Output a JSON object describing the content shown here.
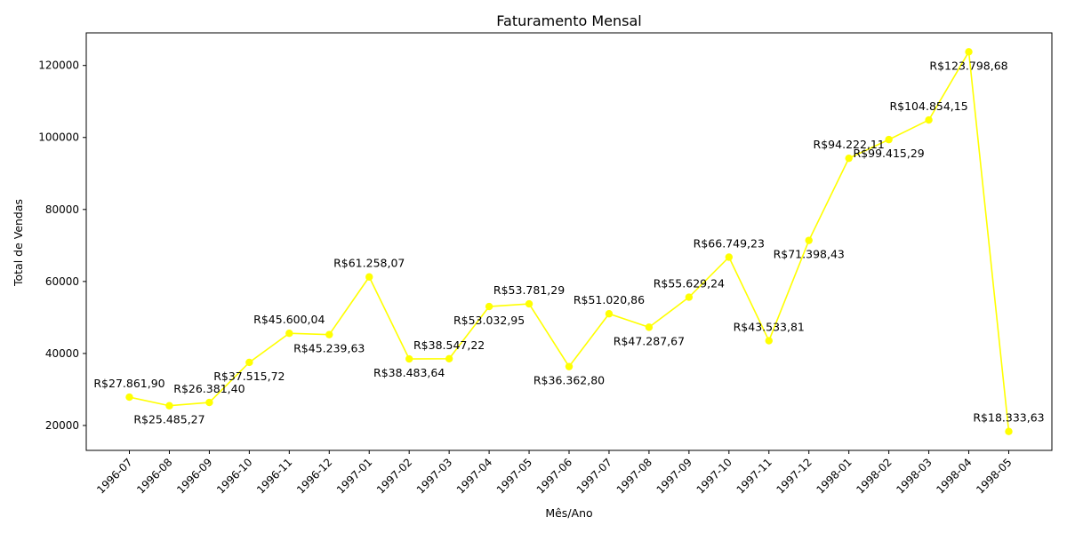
{
  "chart_data": {
    "type": "line",
    "title": "Faturamento Mensal",
    "xlabel": "Mês/Ano",
    "ylabel": "Total de Vendas",
    "categories": [
      "1996-07",
      "1996-08",
      "1996-09",
      "1996-10",
      "1996-11",
      "1996-12",
      "1997-01",
      "1997-02",
      "1997-03",
      "1997-04",
      "1997-05",
      "1997-06",
      "1997-07",
      "1997-08",
      "1997-09",
      "1997-10",
      "1997-11",
      "1997-12",
      "1998-01",
      "1998-02",
      "1998-03",
      "1998-04",
      "1998-05"
    ],
    "values": [
      27861.9,
      25485.27,
      26381.4,
      37515.72,
      45600.04,
      45239.63,
      61258.07,
      38483.64,
      38547.22,
      53032.95,
      53781.29,
      36362.8,
      51020.86,
      47287.67,
      55629.24,
      66749.23,
      43533.81,
      71398.43,
      94222.11,
      99415.29,
      104854.15,
      123798.68,
      18333.63
    ],
    "data_labels": [
      "R$27.861,90",
      "R$25.485,27",
      "R$26.381,40",
      "R$37.515,72",
      "R$45.600,04",
      "R$45.239,63",
      "R$61.258,07",
      "R$38.483,64",
      "R$38.547,22",
      "R$53.032,95",
      "R$53.781,29",
      "R$36.362,80",
      "R$51.020,86",
      "R$47.287,67",
      "R$55.629,24",
      "R$66.749,23",
      "R$43.533,81",
      "R$71.398,43",
      "R$94.222,11",
      "R$99.415,29",
      "R$104.854,15",
      "R$123.798,68",
      "R$18.333,63"
    ],
    "label_side": [
      "above",
      "below",
      "above",
      "below",
      "above",
      "below",
      "above",
      "below",
      "above",
      "below",
      "above",
      "below",
      "above",
      "below",
      "above",
      "above",
      "above",
      "below",
      "above",
      "below",
      "above",
      "below",
      "above"
    ],
    "y_ticks": [
      20000,
      40000,
      60000,
      80000,
      100000,
      120000
    ],
    "y_tick_labels": [
      "20000",
      "40000",
      "60000",
      "80000",
      "100000",
      "120000"
    ],
    "ylim": [
      13078.38,
      129053.93
    ],
    "grid": false,
    "line_color": "#ffff00",
    "marker_color": "#ffff00"
  }
}
